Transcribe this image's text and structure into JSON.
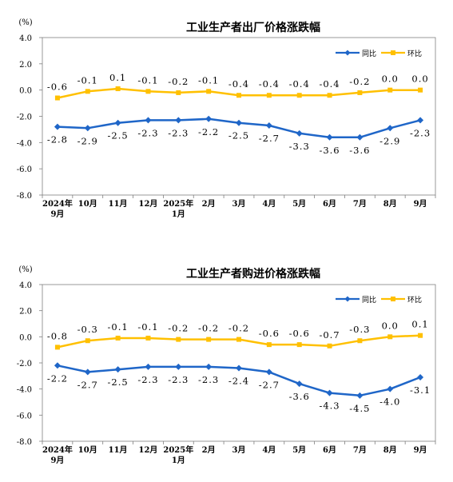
{
  "colors": {
    "yoy": "#1f66c8",
    "mom": "#ffc000",
    "axis": "#7f7f7f"
  },
  "chart_data": [
    {
      "type": "line",
      "title": "工业生产者出厂价格涨跌幅",
      "ylabel": "(%)",
      "ylim": [
        -8.0,
        4.0
      ],
      "yticks": [
        "4.0",
        "2.0",
        "0.0",
        "-2.0",
        "-4.0",
        "-6.0",
        "-8.0"
      ],
      "categories": [
        [
          "2024年",
          "9月"
        ],
        [
          "10月"
        ],
        [
          "11月"
        ],
        [
          "12月"
        ],
        [
          "2025年",
          "1月"
        ],
        [
          "2月"
        ],
        [
          "3月"
        ],
        [
          "4月"
        ],
        [
          "5月"
        ],
        [
          "6月"
        ],
        [
          "7月"
        ],
        [
          "8月"
        ],
        [
          "9月"
        ]
      ],
      "legend_position": "top-right",
      "series": [
        {
          "name": "同比",
          "marker": "diamond",
          "values": [
            -2.8,
            -2.9,
            -2.5,
            -2.3,
            -2.3,
            -2.2,
            -2.5,
            -2.7,
            -3.3,
            -3.6,
            -3.6,
            -2.9,
            -2.3
          ],
          "labels": [
            "-2.8",
            "-2.9",
            "-2.5",
            "-2.3",
            "-2.3",
            "-2.2",
            "-2.5",
            "-2.7",
            "-3.3",
            "-3.6",
            "-3.6",
            "-2.9",
            "-2.3"
          ]
        },
        {
          "name": "环比",
          "marker": "square",
          "values": [
            -0.6,
            -0.1,
            0.1,
            -0.1,
            -0.2,
            -0.1,
            -0.4,
            -0.4,
            -0.4,
            -0.4,
            -0.2,
            0.0,
            0.0
          ],
          "labels": [
            "-0.6",
            "-0.1",
            "0.1",
            "-0.1",
            "-0.2",
            "-0.1",
            "-0.4",
            "-0.4",
            "-0.4",
            "-0.4",
            "-0.2",
            "0.0",
            "0.0"
          ]
        }
      ]
    },
    {
      "type": "line",
      "title": "工业生产者购进价格涨跌幅",
      "ylabel": "(%)",
      "ylim": [
        -8.0,
        4.0
      ],
      "yticks": [
        "4.0",
        "2.0",
        "0.0",
        "-2.0",
        "-4.0",
        "-6.0",
        "-8.0"
      ],
      "categories": [
        [
          "2024年",
          "9月"
        ],
        [
          "10月"
        ],
        [
          "11月"
        ],
        [
          "12月"
        ],
        [
          "2025年",
          "1月"
        ],
        [
          "2月"
        ],
        [
          "3月"
        ],
        [
          "4月"
        ],
        [
          "5月"
        ],
        [
          "6月"
        ],
        [
          "7月"
        ],
        [
          "8月"
        ],
        [
          "9月"
        ]
      ],
      "legend_position": "top-right",
      "series": [
        {
          "name": "同比",
          "marker": "diamond",
          "values": [
            -2.2,
            -2.7,
            -2.5,
            -2.3,
            -2.3,
            -2.3,
            -2.4,
            -2.7,
            -3.6,
            -4.3,
            -4.5,
            -4.0,
            -3.1
          ],
          "labels": [
            "-2.2",
            "-2.7",
            "-2.5",
            "-2.3",
            "-2.3",
            "-2.3",
            "-2.4",
            "-2.7",
            "-3.6",
            "-4.3",
            "-4.5",
            "-4.0",
            "-3.1"
          ]
        },
        {
          "name": "环比",
          "marker": "square",
          "values": [
            -0.8,
            -0.3,
            -0.1,
            -0.1,
            -0.2,
            -0.2,
            -0.2,
            -0.6,
            -0.6,
            -0.7,
            -0.3,
            0.0,
            0.1
          ],
          "labels": [
            "-0.8",
            "-0.3",
            "-0.1",
            "-0.1",
            "-0.2",
            "-0.2",
            "-0.2",
            "-0.6",
            "-0.6",
            "-0.7",
            "-0.3",
            "0.0",
            "0.1"
          ]
        }
      ]
    }
  ]
}
